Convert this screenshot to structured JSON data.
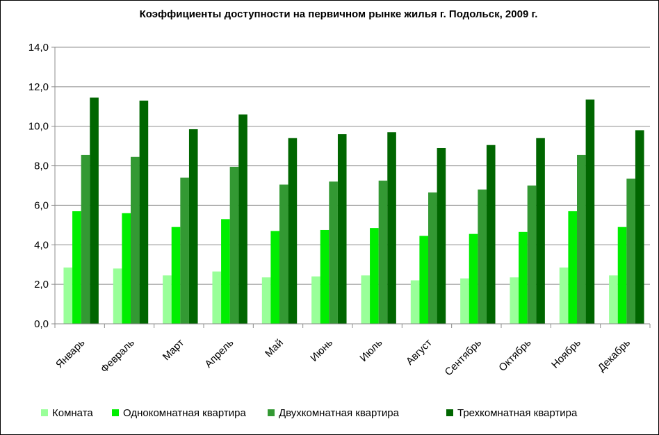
{
  "chart_data": {
    "type": "bar",
    "title": "Коэффициенты доступности на первичном рынке жилья г. Подольск, 2009 г.",
    "xlabel": "",
    "ylabel": "",
    "ylim": [
      0,
      14
    ],
    "yticks": [
      "0,0",
      "2,0",
      "4,0",
      "6,0",
      "8,0",
      "10,0",
      "12,0",
      "14,0"
    ],
    "grid": true,
    "legend_position": "bottom",
    "categories": [
      "Январь",
      "Февраль",
      "Март",
      "Апрель",
      "Май",
      "Июнь",
      "Июль",
      "Август",
      "Сентябрь",
      "Октябрь",
      "Ноябрь",
      "Декабрь"
    ],
    "series": [
      {
        "name": "Комната",
        "color": "#99ff99",
        "values": [
          2.85,
          2.8,
          2.45,
          2.65,
          2.35,
          2.4,
          2.45,
          2.2,
          2.3,
          2.35,
          2.85,
          2.45
        ]
      },
      {
        "name": "Однокомнатная квартира",
        "color": "#00ee00",
        "values": [
          5.7,
          5.6,
          4.9,
          5.3,
          4.7,
          4.75,
          4.85,
          4.45,
          4.55,
          4.65,
          5.7,
          4.9
        ]
      },
      {
        "name": "Двухкомнатная квартира",
        "color": "#339933",
        "values": [
          8.55,
          8.45,
          7.4,
          7.95,
          7.05,
          7.2,
          7.25,
          6.65,
          6.8,
          7.0,
          8.55,
          7.35
        ]
      },
      {
        "name": "Трехкомнатная квартира",
        "color": "#006600",
        "values": [
          11.45,
          11.3,
          9.85,
          10.6,
          9.4,
          9.6,
          9.7,
          8.9,
          9.05,
          9.4,
          11.35,
          9.8
        ]
      }
    ]
  }
}
